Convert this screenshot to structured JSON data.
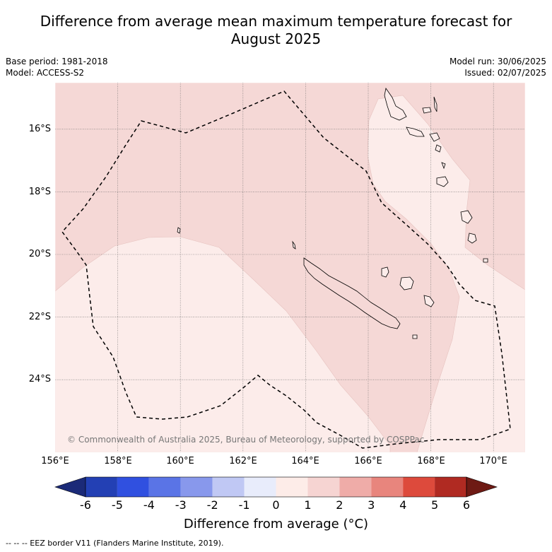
{
  "title_line1": "Difference from average mean maximum temperature forecast for",
  "title_line2": "August 2025",
  "base_period": "Base period: 1981-2018",
  "model": "Model: ACCESS-S2",
  "model_run": "Model run: 30/06/2025",
  "issued": "Issued: 02/07/2025",
  "copyright": "© Commonwealth of Australia 2025, Bureau of Meteorology, supported by COSPPac",
  "lat_labels": [
    "16°S",
    "18°S",
    "20°S",
    "22°S",
    "24°S"
  ],
  "lon_labels": [
    "156°E",
    "158°E",
    "160°E",
    "162°E",
    "164°E",
    "166°E",
    "168°E",
    "170°E"
  ],
  "colorbar": {
    "ticks": [
      "-6",
      "-5",
      "-4",
      "-3",
      "-2",
      "-1",
      "0",
      "1",
      "2",
      "3",
      "4",
      "5",
      "6"
    ],
    "colors": [
      "#1b2a78",
      "#2340b4",
      "#3050e0",
      "#5a74e6",
      "#8898ec",
      "#c0c8f4",
      "#e8ecfb",
      "#fdece8",
      "#f6d4d2",
      "#efaca8",
      "#e8857d",
      "#dd4a3c",
      "#b02a22",
      "#6e1a14"
    ],
    "label": "Difference from average (°C)"
  },
  "footer": "-- -- -- EEZ border V11 (Flanders Marine Institute, 2019).",
  "map_colors": {
    "base": "#f5d8d6",
    "light": "#fcecea"
  }
}
